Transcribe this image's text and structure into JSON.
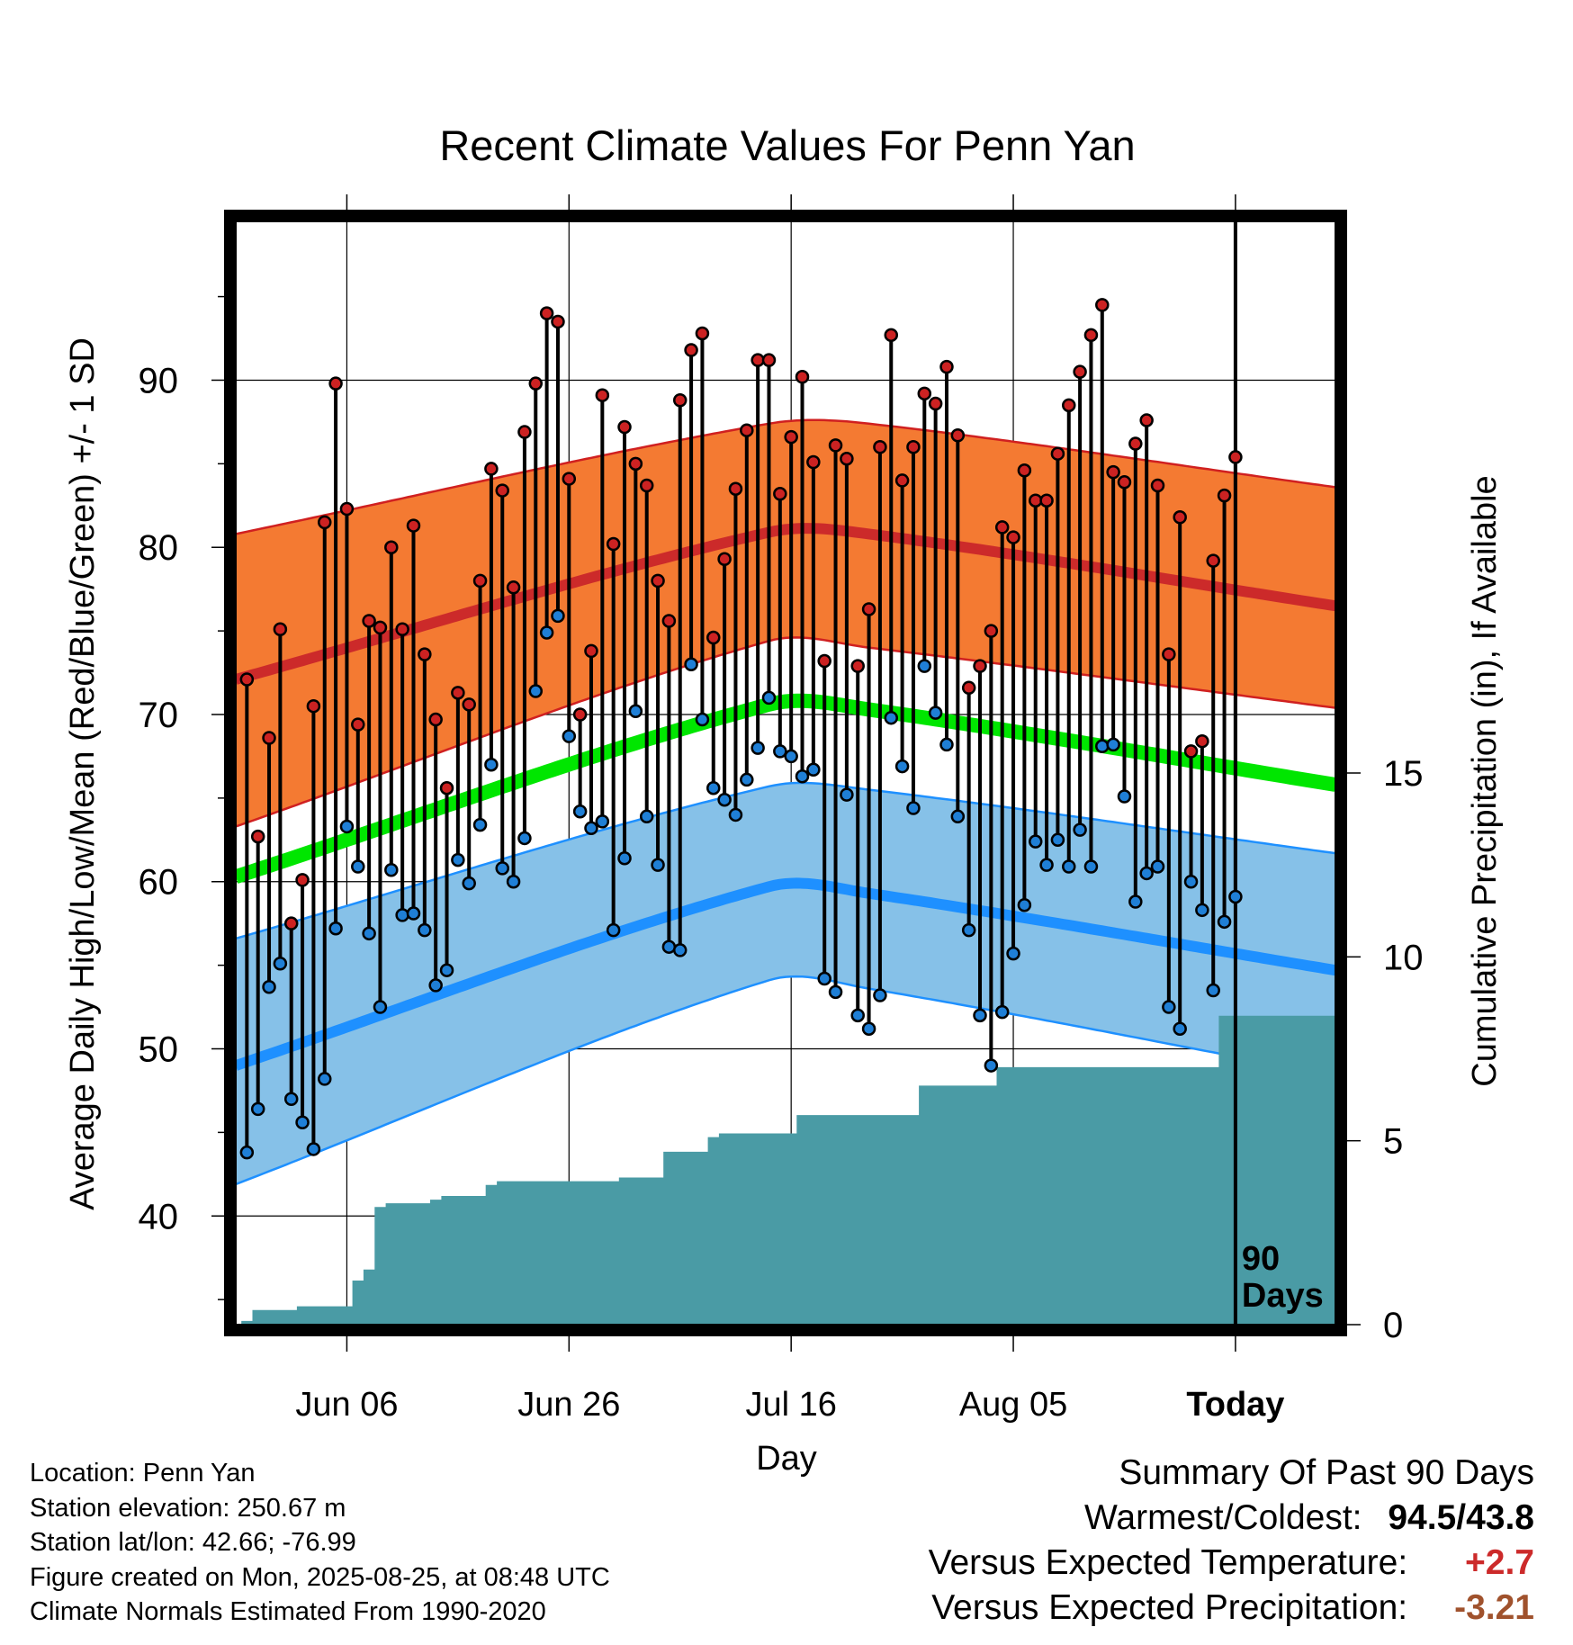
{
  "chart_data": {
    "type": "line",
    "title": "Recent Climate Values For Penn Yan",
    "xlabel": "Day",
    "ylabel": "Average Daily High/Low/Mean (Red/Blue/Green) +/- 1 SD",
    "y2label": "Cumulative Precipitation (in), If Available",
    "xlim_day_index": [
      -90,
      9
    ],
    "ylim": [
      33.5,
      99.5
    ],
    "y2lim": [
      0,
      30
    ],
    "xticks": [
      {
        "day": -80,
        "label": "Jun 06"
      },
      {
        "day": -60,
        "label": "Jun 26"
      },
      {
        "day": -40,
        "label": "Jul 16"
      },
      {
        "day": -20,
        "label": "Aug 05"
      },
      {
        "day": 0,
        "label": "Today"
      }
    ],
    "yticks": [
      40,
      50,
      60,
      70,
      80,
      90
    ],
    "y2ticks": [
      0,
      5,
      10,
      15
    ],
    "grid": true,
    "today_marker": {
      "day": 0,
      "label_line1": "90",
      "label_line2": "Days"
    },
    "normals": {
      "high_mean": [
        72.1,
        80.9,
        80.8,
        76.5
      ],
      "high_band_upper": [
        80.8,
        87.4,
        87.4,
        83.6
      ],
      "high_band_lower": [
        63.3,
        74.4,
        74.0,
        70.4
      ],
      "mean": [
        60.3,
        70.6,
        70.3,
        65.8
      ],
      "low_mean": [
        49.0,
        59.7,
        59.3,
        54.7
      ],
      "low_band_upper": [
        56.6,
        65.7,
        65.5,
        61.7
      ],
      "low_band_lower": [
        41.9,
        54.1,
        53.6,
        48.4
      ],
      "control_days": [
        -90,
        -42,
        -33,
        9
      ]
    },
    "series": [
      {
        "name": "High",
        "values": [
          72.1,
          62.7,
          68.6,
          75.1,
          57.5,
          60.1,
          70.5,
          81.5,
          89.8,
          82.3,
          69.4,
          75.6,
          75.2,
          80.0,
          75.1,
          81.3,
          73.6,
          69.7,
          65.6,
          71.3,
          70.6,
          78.0,
          84.7,
          83.4,
          77.6,
          86.9,
          89.8,
          94.0,
          93.5,
          84.1,
          70.0,
          73.8,
          89.1,
          80.2,
          87.2,
          85.0,
          83.7,
          78.0,
          75.6,
          88.8,
          91.8,
          92.8,
          74.6,
          79.3,
          83.5,
          87.0,
          91.2,
          91.2,
          83.2,
          86.6,
          90.2,
          85.1,
          73.2,
          86.1,
          85.3,
          72.9,
          76.3,
          86.0,
          92.7,
          84.0,
          86.0,
          89.2,
          88.6,
          90.8,
          86.7,
          71.6,
          72.9,
          75.0,
          81.2,
          80.6,
          84.6,
          82.8,
          82.8,
          85.6,
          88.5,
          90.5,
          92.7,
          94.5,
          84.5,
          83.9,
          86.2,
          87.6,
          83.7,
          73.6,
          81.8,
          67.8,
          68.4,
          79.2,
          83.1,
          85.4
        ]
      },
      {
        "name": "Low",
        "values": [
          43.8,
          46.4,
          53.7,
          55.1,
          47.0,
          45.6,
          44.0,
          48.2,
          57.2,
          63.3,
          60.9,
          56.9,
          52.5,
          60.7,
          58.0,
          58.1,
          57.1,
          53.8,
          54.7,
          61.3,
          59.9,
          63.4,
          67.0,
          60.8,
          60.0,
          62.6,
          71.4,
          74.9,
          75.9,
          68.7,
          64.2,
          63.2,
          63.6,
          57.1,
          61.4,
          70.2,
          63.9,
          61.0,
          56.1,
          55.9,
          73.0,
          69.7,
          65.6,
          64.9,
          64.0,
          66.1,
          68.0,
          71.0,
          67.8,
          67.5,
          66.3,
          66.7,
          54.2,
          53.4,
          65.2,
          52.0,
          51.2,
          53.2,
          69.8,
          66.9,
          64.4,
          72.9,
          70.1,
          68.2,
          63.9,
          57.1,
          52.0,
          49.0,
          52.2,
          55.7,
          58.6,
          62.4,
          61.0,
          62.5,
          60.9,
          63.1,
          60.9,
          68.1,
          68.2,
          65.1,
          58.8,
          60.5,
          60.9,
          52.5,
          51.2,
          60.0,
          58.3,
          53.5,
          57.6,
          59.1
        ]
      }
    ],
    "precipitation": {
      "cumulative_in": [
        0.1,
        0.4,
        0.4,
        0.4,
        0.4,
        0.5,
        0.5,
        0.5,
        0.5,
        0.5,
        1.2,
        1.5,
        3.2,
        3.3,
        3.3,
        3.3,
        3.3,
        3.4,
        3.5,
        3.5,
        3.5,
        3.5,
        3.8,
        3.9,
        3.9,
        3.9,
        3.9,
        3.9,
        3.9,
        3.9,
        3.9,
        3.9,
        3.9,
        3.9,
        4.0,
        4.0,
        4.0,
        4.0,
        4.7,
        4.7,
        4.7,
        4.7,
        5.1,
        5.2,
        5.2,
        5.2,
        5.2,
        5.2,
        5.2,
        5.2,
        5.7,
        5.7,
        5.7,
        5.7,
        5.7,
        5.7,
        5.7,
        5.7,
        5.7,
        5.7,
        5.7,
        6.5,
        6.5,
        6.5,
        6.5,
        6.5,
        6.5,
        6.5,
        7.0,
        7.0,
        7.0,
        7.0,
        7.0,
        7.0,
        7.0,
        7.0,
        7.0,
        7.0,
        7.0,
        7.0,
        7.0,
        7.0,
        7.0,
        7.0,
        7.0,
        7.0,
        7.0,
        7.0,
        8.4,
        8.4
      ]
    }
  },
  "info": {
    "location": "Location: Penn Yan",
    "elevation": "Station elevation: 250.67 m",
    "latlon": "Station lat/lon: 42.66; -76.99",
    "created": "Figure created on Mon, 2025-08-25, at 08:48 UTC",
    "normals": "Climate Normals Estimated From 1990-2020"
  },
  "summary": {
    "title": "Summary Of Past 90 Days",
    "warm_cold_label": "Warmest/Coldest:",
    "warm_cold_value": "94.5/43.8",
    "temp_label": "Versus Expected Temperature:",
    "temp_value": "+2.7",
    "precip_label": "Versus Expected Precipitation:",
    "precip_value": "-3.21"
  },
  "colors": {
    "high_band": "#f47a32",
    "high_line": "#cc2a2a",
    "mean_line": "#00e600",
    "low_band": "#86c1e8",
    "low_line": "#1e90ff",
    "precip_fill": "#4a9ba5",
    "high_dot": "#cc2222",
    "low_dot": "#1f7fd6"
  }
}
